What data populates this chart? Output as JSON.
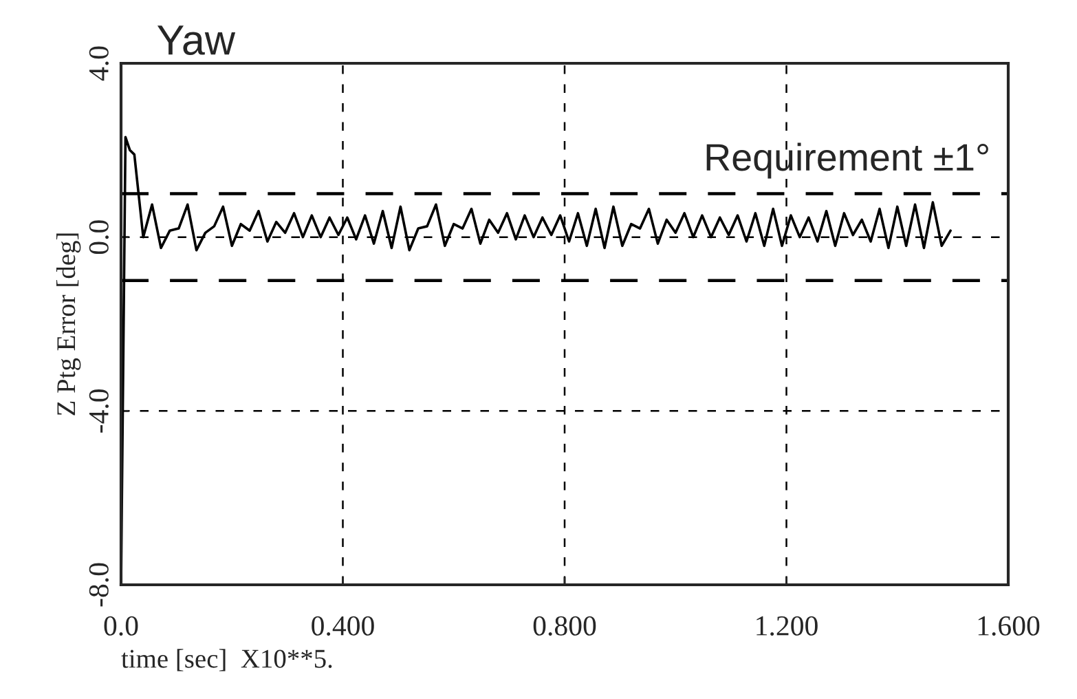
{
  "chart_data": {
    "type": "line",
    "title": "Yaw",
    "xlabel": "time [sec]  X10**5.",
    "ylabel": "Z Ptg Error [deg]",
    "xlim": [
      0,
      1.6
    ],
    "ylim": [
      -8,
      4
    ],
    "xticks": [
      {
        "value": 0,
        "label": "0.0"
      },
      {
        "value": 0.4,
        "label": "0.400"
      },
      {
        "value": 0.8,
        "label": "0.800"
      },
      {
        "value": 1.2,
        "label": "1.200"
      },
      {
        "value": 1.6,
        "label": "1.600"
      }
    ],
    "yticks": [
      {
        "value": -8,
        "label": "-8.0"
      },
      {
        "value": -4,
        "label": "-4.0"
      },
      {
        "value": 0,
        "label": "0.0"
      },
      {
        "value": 4,
        "label": "4.0"
      }
    ],
    "grid": true,
    "legend": false,
    "marker": "none",
    "line_style": "solid",
    "ref_lines": [
      {
        "axis": "y",
        "value": 1,
        "label": "Requirement ±1°",
        "color": "#000000",
        "line_style": "dashed"
      },
      {
        "axis": "y",
        "value": -1,
        "label": null,
        "color": "#000000",
        "line_style": "dashed"
      }
    ],
    "series": [
      {
        "color": "#000000",
        "x": [
          0,
          0.008,
          0.016,
          0.024,
          0.04,
          0.056,
          0.072,
          0.088,
          0.104,
          0.12,
          0.136,
          0.152,
          0.168,
          0.184,
          0.2,
          0.216,
          0.232,
          0.248,
          0.264,
          0.28,
          0.296,
          0.312,
          0.328,
          0.344,
          0.36,
          0.376,
          0.392,
          0.408,
          0.424,
          0.44,
          0.456,
          0.472,
          0.488,
          0.504,
          0.52,
          0.536,
          0.552,
          0.568,
          0.584,
          0.6,
          0.616,
          0.632,
          0.648,
          0.664,
          0.68,
          0.696,
          0.712,
          0.728,
          0.744,
          0.76,
          0.776,
          0.792,
          0.808,
          0.824,
          0.84,
          0.856,
          0.872,
          0.888,
          0.904,
          0.92,
          0.936,
          0.952,
          0.968,
          0.984,
          1.0,
          1.016,
          1.032,
          1.048,
          1.064,
          1.08,
          1.096,
          1.112,
          1.128,
          1.144,
          1.16,
          1.176,
          1.192,
          1.208,
          1.224,
          1.24,
          1.256,
          1.272,
          1.288,
          1.304,
          1.32,
          1.336,
          1.352,
          1.368,
          1.384,
          1.4,
          1.416,
          1.432,
          1.448,
          1.464,
          1.48,
          1.496
        ],
        "values": [
          -8,
          2.3,
          2.0,
          1.9,
          0.0,
          0.75,
          -0.25,
          0.15,
          0.2,
          0.75,
          -0.3,
          0.1,
          0.25,
          0.7,
          -0.2,
          0.3,
          0.15,
          0.6,
          -0.1,
          0.35,
          0.1,
          0.55,
          0.0,
          0.5,
          0.0,
          0.45,
          0.05,
          0.45,
          -0.05,
          0.5,
          -0.15,
          0.6,
          -0.25,
          0.7,
          -0.3,
          0.2,
          0.25,
          0.75,
          -0.2,
          0.3,
          0.2,
          0.65,
          -0.15,
          0.4,
          0.1,
          0.55,
          -0.05,
          0.5,
          0.0,
          0.45,
          0.05,
          0.5,
          -0.1,
          0.55,
          -0.2,
          0.65,
          -0.25,
          0.7,
          -0.2,
          0.3,
          0.2,
          0.65,
          -0.15,
          0.4,
          0.1,
          0.55,
          0.0,
          0.5,
          0.0,
          0.45,
          0.05,
          0.5,
          -0.1,
          0.55,
          -0.2,
          0.65,
          -0.2,
          0.5,
          0.0,
          0.45,
          -0.1,
          0.6,
          -0.2,
          0.55,
          0.05,
          0.4,
          -0.1,
          0.65,
          -0.25,
          0.7,
          -0.2,
          0.75,
          -0.25,
          0.8,
          -0.2,
          0.15
        ]
      }
    ]
  }
}
